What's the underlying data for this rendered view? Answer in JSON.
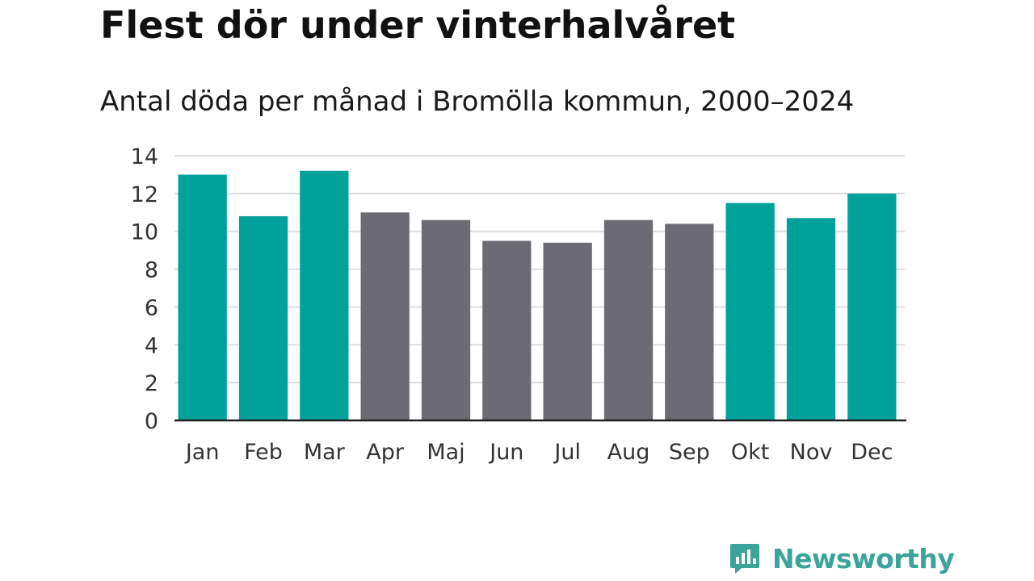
{
  "title": "Flest dör under vinterhalvåret",
  "subtitle": "Antal döda per månad i Bromölla kommun, 2000–2024",
  "brand": "Newsworthy",
  "colors": {
    "highlight": "#00a19a",
    "neutral": "#6c6b73",
    "grid": "#dddddd",
    "axis": "#222222",
    "brand": "#3aa39a"
  },
  "chart_data": {
    "type": "bar",
    "categories": [
      "Jan",
      "Feb",
      "Mar",
      "Apr",
      "Maj",
      "Jun",
      "Jul",
      "Aug",
      "Sep",
      "Okt",
      "Nov",
      "Dec"
    ],
    "values": [
      13.0,
      10.8,
      13.2,
      11.0,
      10.6,
      9.5,
      9.4,
      10.6,
      10.4,
      11.5,
      10.7,
      12.0
    ],
    "highlighted": [
      true,
      true,
      true,
      false,
      false,
      false,
      false,
      false,
      false,
      true,
      true,
      true
    ],
    "yticks": [
      0,
      2,
      4,
      6,
      8,
      10,
      12,
      14
    ],
    "ylim": [
      0,
      14
    ],
    "grid": true,
    "xlabel": "",
    "ylabel": ""
  }
}
